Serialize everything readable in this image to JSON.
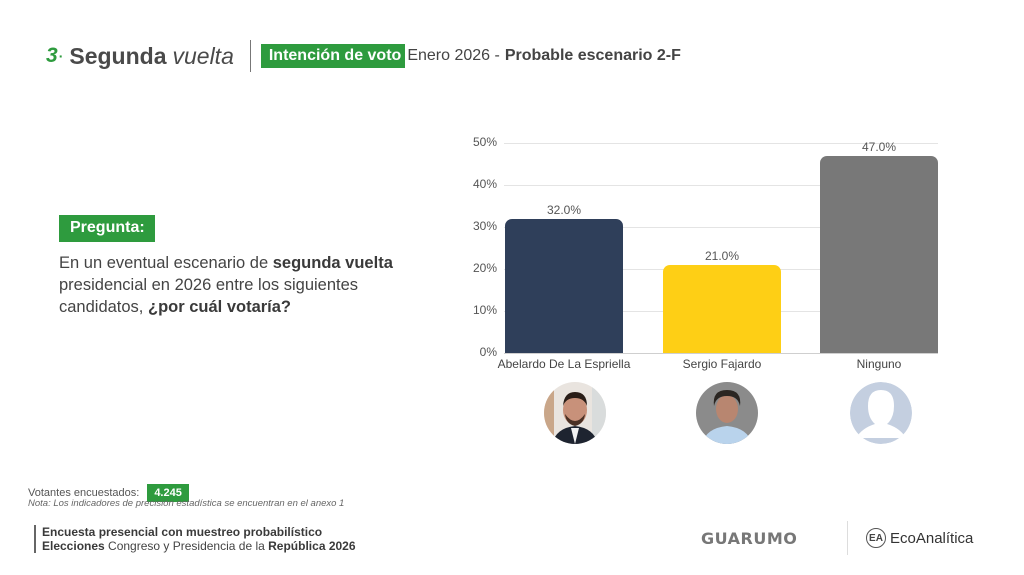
{
  "header": {
    "section_number": "3",
    "title_bold": "Segunda",
    "title_italic": "vuelta",
    "badge": "Intención de voto",
    "subtitle_date": "Enero 2026 -",
    "subtitle_bold": "Probable escenario 2-F"
  },
  "question": {
    "label": "Pregunta:",
    "text_1": "En un eventual escenario de ",
    "text_1_bold": "segunda vuelta",
    "text_2": " presidencial en 2026 entre los siguientes candidatos, ",
    "text_2_bold": "¿por cuál votaría?"
  },
  "colors": {
    "accent_green": "#2e9b3e",
    "bar_1": "#2f3f5a",
    "bar_2": "#fecf15",
    "bar_3": "#787878",
    "avatar_placeholder": "#c4cfe0"
  },
  "chart_data": {
    "type": "bar",
    "title": "",
    "xlabel": "",
    "ylabel": "",
    "categories": [
      "Abelardo De La Espriella",
      "Sergio Fajardo",
      "Ninguno"
    ],
    "values": [
      32.0,
      21.0,
      47.0
    ],
    "value_labels": [
      "32.0%",
      "21.0%",
      "47.0%"
    ],
    "colors": [
      "#2f3f5a",
      "#fecf15",
      "#787878"
    ],
    "ylim": [
      0,
      50
    ],
    "yticks": [
      "0%",
      "10%",
      "20%",
      "30%",
      "40%",
      "50%"
    ],
    "grid": true,
    "legend": "none"
  },
  "avatars": [
    {
      "name": "Abelardo De La Espriella",
      "icon": "candidate-photo"
    },
    {
      "name": "Sergio Fajardo",
      "icon": "candidate-photo"
    },
    {
      "name": "Ninguno",
      "icon": "person-silhouette-icon"
    }
  ],
  "footer": {
    "voters_label": "Votantes encuestados:",
    "voters_count": "4.245",
    "note": "Nota: Los indicadores de precisión estadística se encuentran en el anexo 1",
    "line1": "Encuesta presencial con muestreo probabilístico",
    "line2_bold_a": "Elecciones",
    "line2_mid": " Congreso y Presidencia de la ",
    "line2_bold_b": "República 2026",
    "logo_1": "GUARUMO",
    "logo_2": "EcoAnalítica",
    "logo_2_icon": "EA"
  }
}
